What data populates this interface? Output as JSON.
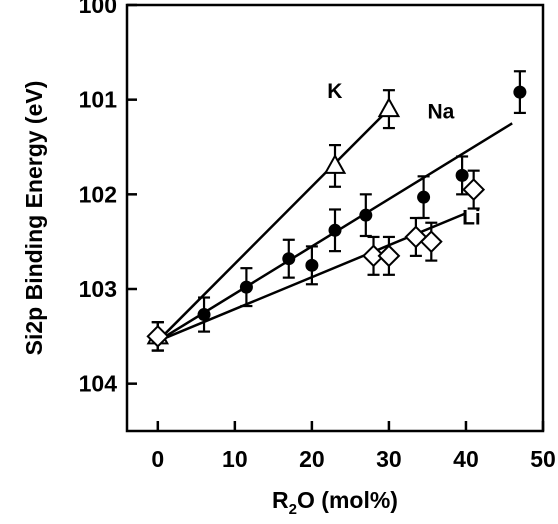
{
  "chart_data": {
    "type": "scatter",
    "xlabel_main": "R",
    "xlabel_sub": "2",
    "xlabel_rest": "O (mol%)",
    "ylabel": "Si2p Binding Energy (eV)",
    "xlim": [
      -4,
      50
    ],
    "ylim": [
      100.0,
      104.5
    ],
    "y_inverted": true,
    "xticks": [
      0,
      10,
      20,
      30,
      40,
      50
    ],
    "yticks": [
      100,
      101,
      102,
      103,
      104
    ],
    "legend": "none",
    "grid": false,
    "series": [
      {
        "name": "K",
        "marker": "triangle-open",
        "points": [
          {
            "x": 0,
            "y": 103.5,
            "err": 0.15
          },
          {
            "x": 23,
            "y": 101.7,
            "err": 0.22
          },
          {
            "x": 30,
            "y": 101.1,
            "err": 0.2
          }
        ],
        "fit": [
          [
            0,
            103.55
          ],
          [
            30,
            101.1
          ]
        ]
      },
      {
        "name": "Na",
        "marker": "circle-filled",
        "points": [
          {
            "x": 0,
            "y": 103.5,
            "err": 0.15
          },
          {
            "x": 6,
            "y": 103.27,
            "err": 0.18
          },
          {
            "x": 11.5,
            "y": 102.98,
            "err": 0.2
          },
          {
            "x": 17,
            "y": 102.68,
            "err": 0.2
          },
          {
            "x": 20,
            "y": 102.75,
            "err": 0.2
          },
          {
            "x": 23,
            "y": 102.38,
            "err": 0.22
          },
          {
            "x": 27,
            "y": 102.22,
            "err": 0.22
          },
          {
            "x": 34.5,
            "y": 102.03,
            "err": 0.22
          },
          {
            "x": 39.5,
            "y": 101.8,
            "err": 0.2
          },
          {
            "x": 47,
            "y": 100.92,
            "err": 0.22
          }
        ],
        "fit": [
          [
            0,
            103.55
          ],
          [
            46,
            101.25
          ]
        ]
      },
      {
        "name": "Li",
        "marker": "diamond-open",
        "points": [
          {
            "x": 0,
            "y": 103.5,
            "err": 0.15
          },
          {
            "x": 28,
            "y": 102.65,
            "err": 0.2
          },
          {
            "x": 30,
            "y": 102.65,
            "err": 0.2
          },
          {
            "x": 33.5,
            "y": 102.45,
            "err": 0.2
          },
          {
            "x": 35.5,
            "y": 102.5,
            "err": 0.2
          },
          {
            "x": 41,
            "y": 101.95,
            "err": 0.2
          }
        ],
        "fit": [
          [
            0,
            103.55
          ],
          [
            40,
            102.2
          ]
        ]
      }
    ],
    "annotations": [
      {
        "text": "K",
        "x": 22.0,
        "y": 100.98
      },
      {
        "text": "Na",
        "x": 35.0,
        "y": 101.2
      },
      {
        "text": "Li",
        "x": 39.5,
        "y": 102.32
      }
    ]
  }
}
